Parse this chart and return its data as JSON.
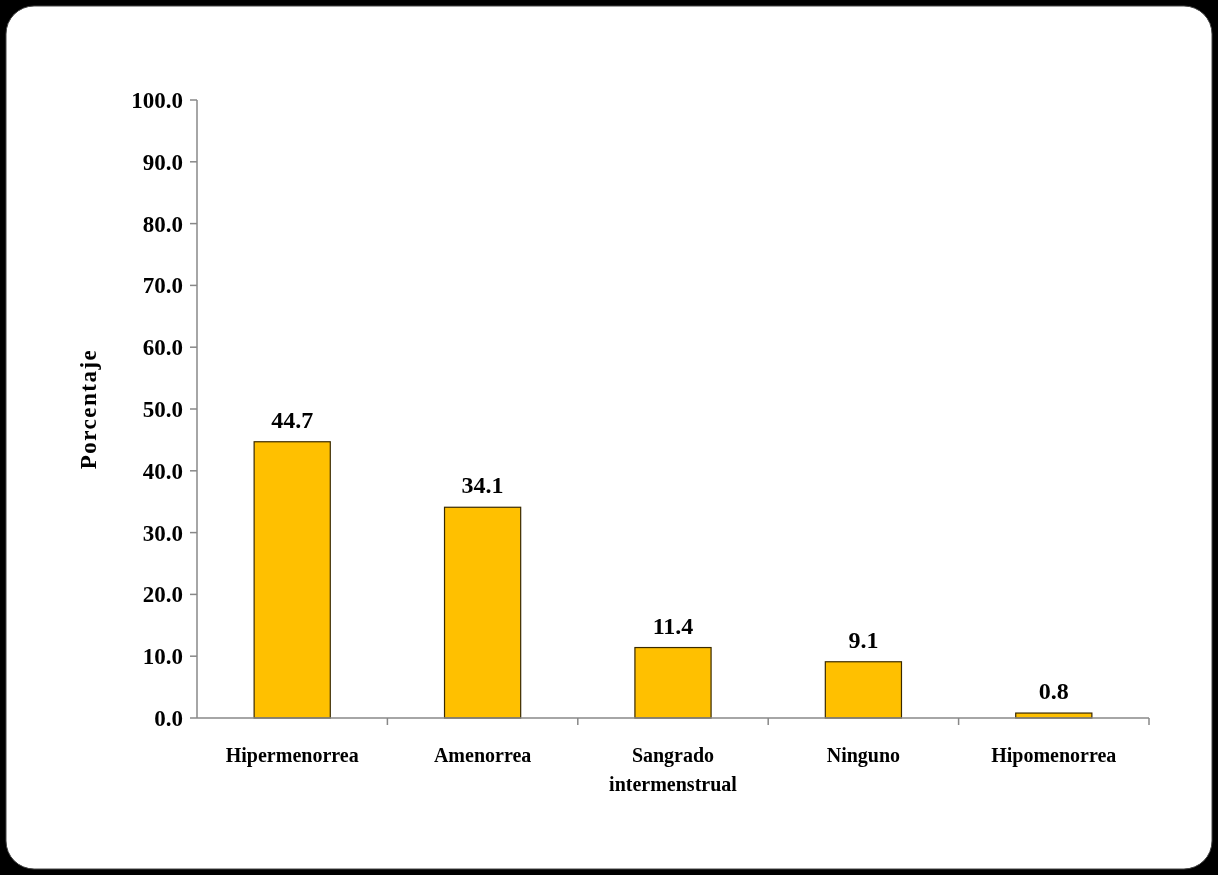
{
  "chart_data": {
    "type": "bar",
    "ylabel": "Porcentaje",
    "categories": [
      "Hipermenorrea",
      "Amenorrea",
      "Sangrado intermenstrual",
      "Ninguno",
      "Hipomenorrea"
    ],
    "values": [
      44.7,
      34.1,
      11.4,
      9.1,
      0.8
    ],
    "color": "#ffc000",
    "ylim": [
      0,
      100
    ],
    "yticks": [
      {
        "value": 0,
        "label": "0.0"
      },
      {
        "value": 10,
        "label": "10.0"
      },
      {
        "value": 20,
        "label": "20.0"
      },
      {
        "value": 30,
        "label": "30.0"
      },
      {
        "value": 40,
        "label": "40.0"
      },
      {
        "value": 50,
        "label": "50.0"
      },
      {
        "value": 60,
        "label": "60.0"
      },
      {
        "value": 70,
        "label": "70.0"
      },
      {
        "value": 80,
        "label": "80.0"
      },
      {
        "value": 90,
        "label": "90.0"
      },
      {
        "value": 100,
        "label": "100.0"
      }
    ],
    "data_labels": true,
    "grid": false
  }
}
